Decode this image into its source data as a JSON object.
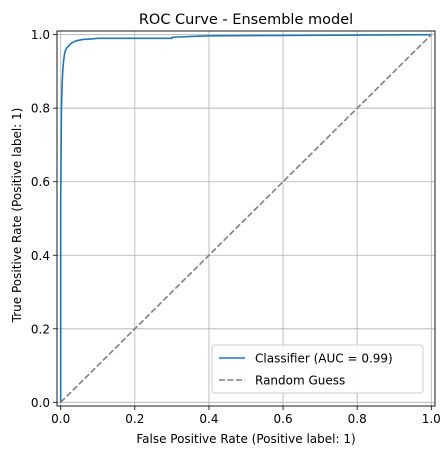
{
  "chart_data": {
    "type": "line",
    "title": "ROC Curve - Ensemble model",
    "xlabel": "False Positive Rate (Positive label: 1)",
    "ylabel": "True Positive Rate (Positive label: 1)",
    "xlim": [
      -0.01,
      1.01
    ],
    "ylim": [
      -0.01,
      1.01
    ],
    "xticks": [
      0.0,
      0.2,
      0.4,
      0.6,
      0.8,
      1.0
    ],
    "xtick_labels": [
      "0.0",
      "0.2",
      "0.4",
      "0.6",
      "0.8",
      "1.0"
    ],
    "yticks": [
      0.0,
      0.2,
      0.4,
      0.6,
      0.8,
      1.0
    ],
    "ytick_labels": [
      "0.0",
      "0.2",
      "0.4",
      "0.6",
      "0.8",
      "1.0"
    ],
    "grid": true,
    "legend_position": "lower-right",
    "series": [
      {
        "name": "Classifier (AUC = 0.99)",
        "color": "#1f77b4",
        "style": "solid",
        "x": [
          0.0,
          0.0,
          0.002,
          0.004,
          0.006,
          0.008,
          0.01,
          0.012,
          0.015,
          0.018,
          0.022,
          0.026,
          0.03,
          0.035,
          0.04,
          0.05,
          0.06,
          0.08,
          0.1,
          0.13,
          0.2,
          0.3,
          0.3,
          0.35,
          0.4,
          0.6,
          0.8,
          1.0
        ],
        "y": [
          0.0,
          0.55,
          0.8,
          0.87,
          0.91,
          0.93,
          0.945,
          0.955,
          0.962,
          0.966,
          0.97,
          0.974,
          0.978,
          0.98,
          0.983,
          0.985,
          0.987,
          0.988,
          0.99,
          0.99,
          0.99,
          0.99,
          0.993,
          0.995,
          0.997,
          0.998,
          0.999,
          1.0
        ]
      },
      {
        "name": "Random Guess",
        "color": "#7f7f7f",
        "style": "dashed",
        "x": [
          0,
          1
        ],
        "y": [
          0,
          1
        ]
      }
    ]
  }
}
